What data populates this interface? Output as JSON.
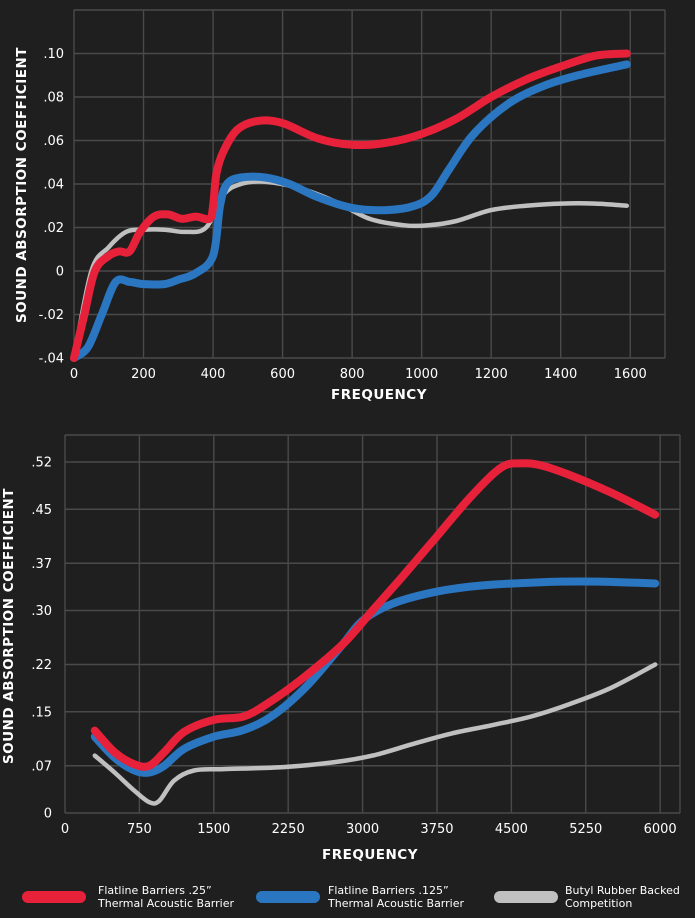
{
  "colors": {
    "background": "#1f1f1f",
    "grid": "#4a4a4a",
    "red": "#e8213a",
    "blue": "#2a76c0",
    "gray": "#c0c0c0"
  },
  "legend": [
    {
      "line1": "Flatline Barriers .25”",
      "line2": "Thermal Acoustic Barrier",
      "color": "#e8213a"
    },
    {
      "line1": "Flatline Barriers .125”",
      "line2": "Thermal Acoustic Barrier",
      "color": "#2a76c0"
    },
    {
      "line1": "Butyl Rubber Backed",
      "line2": "Competition",
      "color": "#c0c0c0"
    }
  ],
  "chart_data": [
    {
      "type": "line",
      "title": "",
      "xlabel": "FREQUENCY",
      "ylabel": "SOUND ABSORPTION COEFFICIENT",
      "xlim": [
        0,
        1700
      ],
      "ylim": [
        -0.04,
        0.12
      ],
      "x_ticks": [
        0,
        200,
        400,
        600,
        800,
        1000,
        1200,
        1400,
        1600
      ],
      "x_tick_labels": [
        "0",
        "200",
        "400",
        "600",
        "800",
        "1000",
        "1200",
        "1400",
        "1600"
      ],
      "y_ticks": [
        -0.04,
        -0.02,
        0,
        0.02,
        0.04,
        0.06,
        0.08,
        0.1
      ],
      "y_tick_labels": [
        "-.04",
        "-.02",
        "0",
        ".02",
        ".04",
        ".06",
        ".08",
        ".10"
      ],
      "grid": true,
      "series": [
        {
          "name": "Flatline Barriers .25” Thermal Acoustic Barrier",
          "color": "#e8213a",
          "points": [
            [
              0,
              -0.04
            ],
            [
              30,
              -0.02
            ],
            [
              60,
              0.0
            ],
            [
              100,
              0.007
            ],
            [
              130,
              0.009
            ],
            [
              160,
              0.009
            ],
            [
              190,
              0.018
            ],
            [
              230,
              0.025
            ],
            [
              270,
              0.026
            ],
            [
              310,
              0.024
            ],
            [
              350,
              0.025
            ],
            [
              390,
              0.024
            ],
            [
              400,
              0.03
            ],
            [
              410,
              0.045
            ],
            [
              430,
              0.055
            ],
            [
              470,
              0.065
            ],
            [
              530,
              0.069
            ],
            [
              600,
              0.068
            ],
            [
              700,
              0.061
            ],
            [
              800,
              0.058
            ],
            [
              900,
              0.059
            ],
            [
              1000,
              0.063
            ],
            [
              1100,
              0.07
            ],
            [
              1200,
              0.08
            ],
            [
              1300,
              0.088
            ],
            [
              1400,
              0.094
            ],
            [
              1500,
              0.099
            ],
            [
              1590,
              0.1
            ]
          ]
        },
        {
          "name": "Flatline Barriers .125” Thermal Acoustic Barrier",
          "color": "#2a76c0",
          "points": [
            [
              0,
              -0.04
            ],
            [
              40,
              -0.035
            ],
            [
              80,
              -0.02
            ],
            [
              120,
              -0.005
            ],
            [
              160,
              -0.005
            ],
            [
              200,
              -0.006
            ],
            [
              260,
              -0.006
            ],
            [
              300,
              -0.004
            ],
            [
              350,
              -0.001
            ],
            [
              400,
              0.007
            ],
            [
              420,
              0.03
            ],
            [
              440,
              0.04
            ],
            [
              480,
              0.043
            ],
            [
              550,
              0.043
            ],
            [
              620,
              0.04
            ],
            [
              700,
              0.034
            ],
            [
              800,
              0.029
            ],
            [
              900,
              0.028
            ],
            [
              980,
              0.03
            ],
            [
              1030,
              0.035
            ],
            [
              1080,
              0.047
            ],
            [
              1150,
              0.063
            ],
            [
              1250,
              0.077
            ],
            [
              1350,
              0.085
            ],
            [
              1450,
              0.09
            ],
            [
              1590,
              0.095
            ]
          ]
        },
        {
          "name": "Butyl Rubber Backed Competition",
          "color": "#c0c0c0",
          "points": [
            [
              0,
              -0.04
            ],
            [
              50,
              0.0
            ],
            [
              100,
              0.011
            ],
            [
              150,
              0.018
            ],
            [
              200,
              0.019
            ],
            [
              260,
              0.019
            ],
            [
              320,
              0.018
            ],
            [
              380,
              0.02
            ],
            [
              430,
              0.035
            ],
            [
              480,
              0.04
            ],
            [
              550,
              0.041
            ],
            [
              650,
              0.038
            ],
            [
              750,
              0.032
            ],
            [
              850,
              0.024
            ],
            [
              950,
              0.021
            ],
            [
              1020,
              0.021
            ],
            [
              1100,
              0.023
            ],
            [
              1200,
              0.028
            ],
            [
              1300,
              0.03
            ],
            [
              1400,
              0.031
            ],
            [
              1500,
              0.031
            ],
            [
              1590,
              0.03
            ]
          ]
        }
      ]
    },
    {
      "type": "line",
      "title": "",
      "xlabel": "FREQUENCY",
      "ylabel": "SOUND ABSORPTION COEFFICIENT",
      "xlim": [
        0,
        6200
      ],
      "ylim": [
        0,
        0.56
      ],
      "x_ticks": [
        0,
        750,
        1500,
        2250,
        3000,
        3750,
        4500,
        5250,
        6000
      ],
      "x_tick_labels": [
        "0",
        "750",
        "1500",
        "2250",
        "3000",
        "3750",
        "4500",
        "5250",
        "6000"
      ],
      "y_ticks": [
        0,
        0.07,
        0.15,
        0.22,
        0.3,
        0.37,
        0.45,
        0.52
      ],
      "y_tick_labels": [
        "0",
        ".07",
        ".15",
        ".22",
        ".30",
        ".37",
        ".45",
        ".52"
      ],
      "grid": true,
      "series": [
        {
          "name": "Flatline Barriers .25” Thermal Acoustic Barrier",
          "color": "#e8213a",
          "points": [
            [
              300,
              0.122
            ],
            [
              500,
              0.09
            ],
            [
              700,
              0.072
            ],
            [
              850,
              0.07
            ],
            [
              1000,
              0.09
            ],
            [
              1200,
              0.12
            ],
            [
              1500,
              0.138
            ],
            [
              1800,
              0.143
            ],
            [
              2050,
              0.163
            ],
            [
              2400,
              0.2
            ],
            [
              2800,
              0.25
            ],
            [
              3100,
              0.3
            ],
            [
              3400,
              0.35
            ],
            [
              3750,
              0.41
            ],
            [
              4100,
              0.47
            ],
            [
              4400,
              0.512
            ],
            [
              4600,
              0.518
            ],
            [
              4800,
              0.515
            ],
            [
              5100,
              0.5
            ],
            [
              5500,
              0.475
            ],
            [
              5950,
              0.442
            ]
          ]
        },
        {
          "name": "Flatline Barriers .125” Thermal Acoustic Barrier",
          "color": "#2a76c0",
          "points": [
            [
              300,
              0.113
            ],
            [
              500,
              0.082
            ],
            [
              700,
              0.063
            ],
            [
              850,
              0.06
            ],
            [
              1000,
              0.07
            ],
            [
              1200,
              0.095
            ],
            [
              1500,
              0.113
            ],
            [
              1800,
              0.123
            ],
            [
              2100,
              0.145
            ],
            [
              2450,
              0.19
            ],
            [
              2800,
              0.25
            ],
            [
              3000,
              0.285
            ],
            [
              3300,
              0.31
            ],
            [
              3750,
              0.328
            ],
            [
              4200,
              0.337
            ],
            [
              4800,
              0.342
            ],
            [
              5200,
              0.343
            ],
            [
              5600,
              0.342
            ],
            [
              5950,
              0.34
            ]
          ]
        },
        {
          "name": "Butyl Rubber Backed Competition",
          "color": "#c0c0c0",
          "points": [
            [
              300,
              0.085
            ],
            [
              500,
              0.06
            ],
            [
              700,
              0.033
            ],
            [
              850,
              0.016
            ],
            [
              950,
              0.018
            ],
            [
              1100,
              0.048
            ],
            [
              1300,
              0.063
            ],
            [
              1600,
              0.065
            ],
            [
              2200,
              0.068
            ],
            [
              2700,
              0.075
            ],
            [
              3100,
              0.085
            ],
            [
              3500,
              0.102
            ],
            [
              3900,
              0.118
            ],
            [
              4300,
              0.13
            ],
            [
              4700,
              0.143
            ],
            [
              5100,
              0.162
            ],
            [
              5500,
              0.185
            ],
            [
              5950,
              0.22
            ]
          ]
        }
      ]
    }
  ]
}
